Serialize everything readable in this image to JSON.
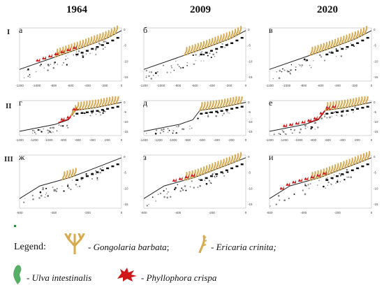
{
  "years": [
    "1964",
    "2009",
    "2020"
  ],
  "rows": [
    "I",
    "II",
    "III"
  ],
  "panels": [
    {
      "letter": "а",
      "ticks_x": [
        "-1200",
        "-1000",
        "-800",
        "-600",
        "-400",
        "-200",
        "0"
      ],
      "ticks_y": [
        "0",
        "-5",
        "-10",
        "-15"
      ]
    },
    {
      "letter": "б",
      "ticks_x": [
        "-1200",
        "-1000",
        "-800",
        "-600",
        "-400",
        "-200",
        "0"
      ],
      "ticks_y": [
        "0",
        "-5",
        "-10",
        "-15"
      ]
    },
    {
      "letter": "в",
      "ticks_x": [
        "-1200",
        "-1000",
        "-800",
        "-600",
        "-400",
        "-200",
        "0"
      ],
      "ticks_y": [
        "0",
        "-5",
        "-10",
        "-15"
      ]
    },
    {
      "letter": "г",
      "ticks_x": [
        "-1400",
        "-1200",
        "-1000",
        "-800",
        "-600",
        "-400",
        "-200",
        "0"
      ],
      "ticks_y": [
        "0",
        "-5",
        "-10",
        "-15"
      ]
    },
    {
      "letter": "д",
      "ticks_x": [
        "-1400",
        "-1200",
        "-1000",
        "-800",
        "-600",
        "-400",
        "-200",
        "0"
      ],
      "ticks_y": [
        "0",
        "-5",
        "-10",
        "-15"
      ]
    },
    {
      "letter": "е",
      "ticks_x": [
        "-1400",
        "-1200",
        "-1000",
        "-800",
        "-600",
        "-400",
        "-200",
        "0"
      ],
      "ticks_y": [
        "0",
        "-5",
        "-10",
        "-15"
      ]
    },
    {
      "letter": "ж",
      "ticks_x": [
        "-600",
        "-400",
        "-200",
        "0"
      ],
      "ticks_y": [
        "0",
        "-5",
        "-10",
        "-15"
      ]
    },
    {
      "letter": "з",
      "ticks_x": [
        "-600",
        "-400",
        "-200",
        "0"
      ],
      "ticks_y": [
        "0",
        "-5",
        "-10",
        "-15"
      ]
    },
    {
      "letter": "и",
      "ticks_x": [
        "-600",
        "-400",
        "-200",
        "0"
      ],
      "ticks_y": [
        "0",
        "-5",
        "-10",
        "-15"
      ]
    }
  ],
  "legend": {
    "title": "Legend:",
    "items": [
      {
        "name": "Gongolaria barbata",
        "sep": " - ",
        "suffix": ";",
        "icon": "gongolaria-icon"
      },
      {
        "name": "Ericaria crinita;",
        "sep": " - ",
        "suffix": "",
        "icon": "ericaria-icon"
      },
      {
        "name": "Ulva intestinalis",
        "sep": " - ",
        "suffix": "",
        "icon": "ulva-icon"
      },
      {
        "name": "Phyllophora crispa",
        "sep": " - ",
        "suffix": "",
        "icon": "phyllophora-icon"
      }
    ]
  },
  "colors": {
    "algae": "#d9a94f",
    "phyllophora": "#d01818",
    "ulva": "#3aa04a",
    "profile": "#222222",
    "accent_profile": "#d01818"
  }
}
